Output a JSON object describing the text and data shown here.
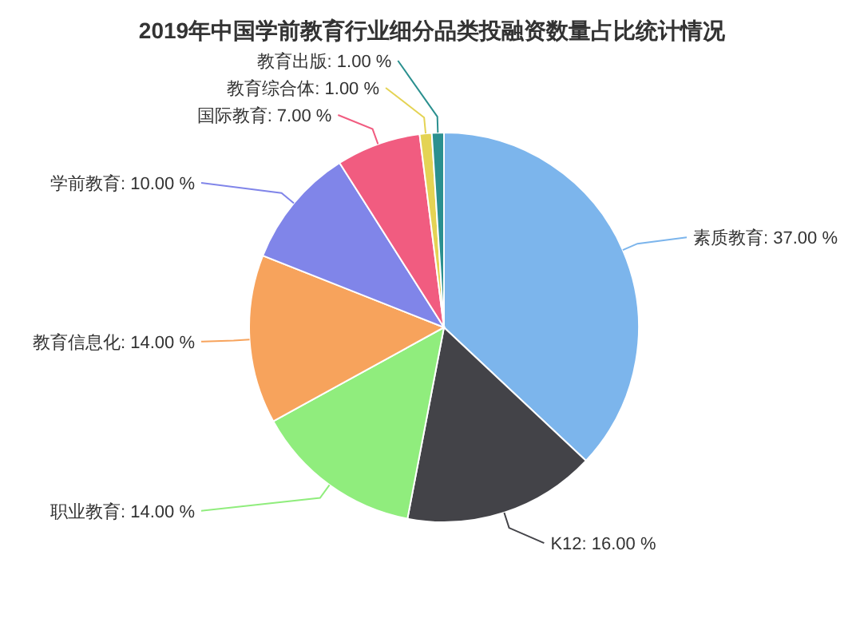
{
  "chart_data": {
    "type": "pie",
    "title": "2019年中国学前教育行业细分品类投融资数量占比统计情况",
    "categories": [
      "素质教育",
      "K12",
      "职业教育",
      "教育信息化",
      "学前教育",
      "国际教育",
      "教育综合体",
      "教育出版"
    ],
    "values": [
      37,
      16,
      14,
      14,
      10,
      7,
      1,
      1
    ],
    "value_labels": [
      "37.00 %",
      "16.00 %",
      "14.00 %",
      "14.00 %",
      "10.00 %",
      "7.00 %",
      "1.00 %",
      "1.00 %"
    ],
    "colors": [
      "#7cb5ec",
      "#434348",
      "#90ed7d",
      "#f7a35c",
      "#8085e9",
      "#f15c80",
      "#e4d354",
      "#2b908f"
    ]
  }
}
